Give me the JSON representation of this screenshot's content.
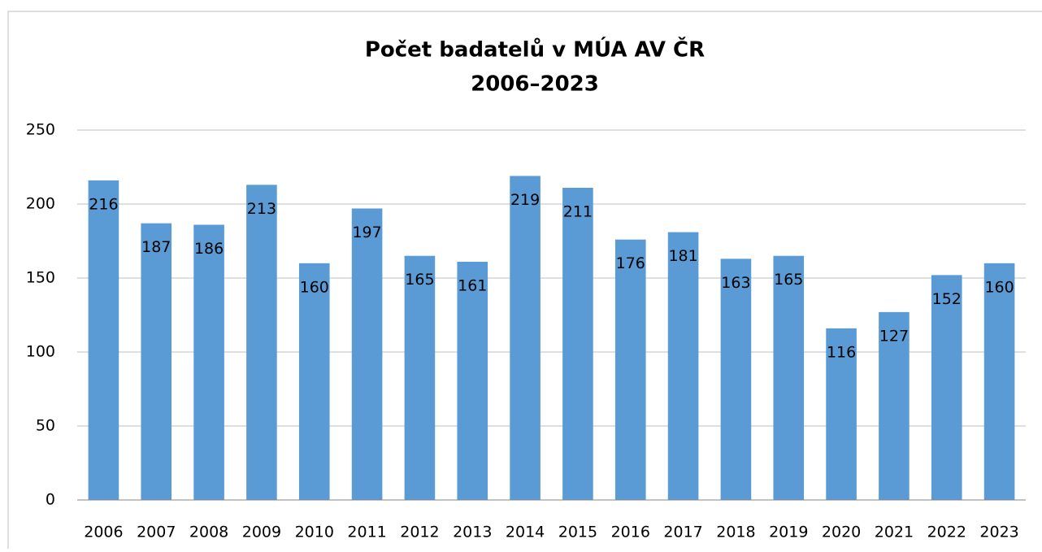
{
  "chart_data": {
    "type": "bar",
    "title": "Počet badatelů v MÚA AV ČR",
    "subtitle": "2006–2023",
    "categories": [
      "2006",
      "2007",
      "2008",
      "2009",
      "2010",
      "2011",
      "2012",
      "2013",
      "2014",
      "2015",
      "2016",
      "2017",
      "2018",
      "2019",
      "2020",
      "2021",
      "2022",
      "2023"
    ],
    "values": [
      216,
      187,
      186,
      213,
      160,
      197,
      165,
      161,
      219,
      211,
      176,
      181,
      163,
      165,
      116,
      127,
      152,
      160
    ],
    "color": "#5b9bd5",
    "ylim": [
      0,
      250
    ],
    "yticks": [
      0,
      50,
      100,
      150,
      200,
      250
    ],
    "grid": true
  }
}
